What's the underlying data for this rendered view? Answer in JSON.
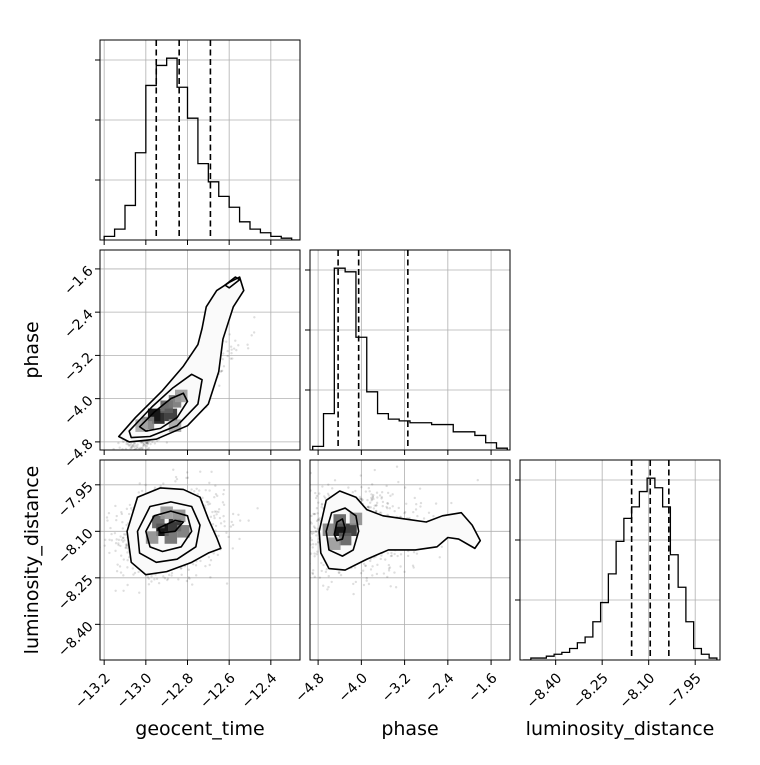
{
  "chart_data": {
    "type": "corner",
    "parameters": [
      "geocent_time",
      "phase",
      "luminosity_distance"
    ],
    "axis_labels": {
      "geocent_time": "geocent_time",
      "phase": "phase",
      "luminosity_distance": "luminosity_distance"
    },
    "ranges": {
      "geocent_time": [
        -13.22,
        -12.26
      ],
      "phase": [
        -4.95,
        -1.25
      ],
      "luminosity_distance": [
        -8.515,
        -7.87
      ]
    },
    "ticks": {
      "geocent_time": {
        "values": [
          -13.2,
          -13.0,
          -12.8,
          -12.6,
          -12.4
        ],
        "labels": [
          "−13.2",
          "−13.0",
          "−12.8",
          "−12.6",
          "−12.4"
        ]
      },
      "phase": {
        "values": [
          -4.8,
          -4.0,
          -3.2,
          -2.4,
          -1.6
        ],
        "labels": [
          "−4.8",
          "−4.0",
          "−3.2",
          "−2.4",
          "−1.6"
        ]
      },
      "luminosity_distance": {
        "values": [
          -8.4,
          -8.25,
          -8.1,
          -7.95
        ],
        "labels": [
          "−8.40",
          "−8.25",
          "−8.10",
          "−7.95"
        ]
      }
    },
    "quantiles": {
      "geocent_time": [
        -12.95,
        -12.84,
        -12.69
      ],
      "phase": [
        -4.43,
        -4.05,
        -3.14
      ],
      "luminosity_distance": [
        -8.155,
        -8.095,
        -8.035
      ]
    },
    "histograms": {
      "geocent_time": {
        "edges": [
          -13.2,
          -13.15,
          -13.1,
          -13.05,
          -13.0,
          -12.95,
          -12.9,
          -12.85,
          -12.8,
          -12.75,
          -12.7,
          -12.65,
          -12.6,
          -12.55,
          -12.5,
          -12.45,
          -12.4,
          -12.35,
          -12.3,
          -12.25
        ],
        "counts": [
          2,
          6,
          19,
          48,
          85,
          96,
          100,
          84,
          67,
          42,
          32,
          24,
          18,
          10,
          6,
          4,
          2,
          1,
          0
        ]
      },
      "phase": {
        "edges": [
          -4.9,
          -4.7,
          -4.5,
          -4.3,
          -4.1,
          -3.9,
          -3.7,
          -3.5,
          -3.3,
          -3.1,
          -2.9,
          -2.7,
          -2.5,
          -2.3,
          -2.1,
          -1.9,
          -1.7,
          -1.5,
          -1.3
        ],
        "counts": [
          2,
          20,
          100,
          98,
          62,
          32,
          20,
          17,
          16,
          15,
          15,
          14,
          14,
          10,
          10,
          8,
          4,
          1
        ]
      },
      "luminosity_distance": {
        "edges": [
          -8.505,
          -8.48,
          -8.455,
          -8.43,
          -8.405,
          -8.38,
          -8.355,
          -8.33,
          -8.305,
          -8.28,
          -8.255,
          -8.23,
          -8.205,
          -8.18,
          -8.155,
          -8.13,
          -8.105,
          -8.08,
          -8.055,
          -8.03,
          -8.005,
          -7.98,
          -7.955,
          -7.93,
          -7.905,
          -7.88
        ],
        "counts": [
          0,
          1,
          1,
          2,
          3,
          4,
          6,
          9,
          12,
          20,
          30,
          45,
          62,
          74,
          80,
          88,
          95,
          90,
          80,
          55,
          38,
          20,
          6,
          3,
          1
        ]
      }
    },
    "pairs": [
      {
        "x": "geocent_time",
        "y": "phase",
        "samples": {
          "center": [
            -12.9,
            -4.3
          ],
          "sd": [
            0.14,
            0.55
          ],
          "corr": 0.94
        },
        "density_bins": [
          {
            "x": -12.96,
            "y": -4.3,
            "level": 1.0
          },
          {
            "x": -12.94,
            "y": -4.35,
            "level": 0.9
          },
          {
            "x": -12.88,
            "y": -4.3,
            "level": 0.8
          },
          {
            "x": -12.9,
            "y": -4.15,
            "level": 0.6
          },
          {
            "x": -12.86,
            "y": -4.05,
            "level": 0.5
          },
          {
            "x": -12.99,
            "y": -4.45,
            "level": 0.45
          },
          {
            "x": -12.83,
            "y": -3.95,
            "level": 0.35
          },
          {
            "x": -13.02,
            "y": -4.5,
            "level": 0.3
          },
          {
            "x": -12.86,
            "y": -4.5,
            "level": 0.3
          }
        ],
        "contours": [
          [
            [
              -13.03,
              -4.52
            ],
            [
              -12.96,
              -4.25
            ],
            [
              -12.88,
              -4.0
            ],
            [
              -12.82,
              -3.9
            ],
            [
              -12.8,
              -4.05
            ],
            [
              -12.85,
              -4.35
            ],
            [
              -12.93,
              -4.55
            ],
            [
              -13.0,
              -4.6
            ]
          ],
          [
            [
              -13.08,
              -4.6
            ],
            [
              -12.97,
              -4.15
            ],
            [
              -12.87,
              -3.8
            ],
            [
              -12.78,
              -3.55
            ],
            [
              -12.73,
              -3.65
            ],
            [
              -12.75,
              -4.1
            ],
            [
              -12.85,
              -4.5
            ],
            [
              -12.98,
              -4.7
            ],
            [
              -13.07,
              -4.72
            ]
          ],
          [
            [
              -13.13,
              -4.7
            ],
            [
              -13.05,
              -4.35
            ],
            [
              -12.92,
              -3.85
            ],
            [
              -12.82,
              -3.4
            ],
            [
              -12.75,
              -3.0
            ],
            [
              -12.73,
              -2.7
            ],
            [
              -12.71,
              -2.3
            ],
            [
              -12.66,
              -2.0
            ],
            [
              -12.6,
              -1.85
            ],
            [
              -12.55,
              -1.75
            ],
            [
              -12.53,
              -2.0
            ],
            [
              -12.58,
              -2.3
            ],
            [
              -12.63,
              -2.9
            ],
            [
              -12.65,
              -3.5
            ],
            [
              -12.7,
              -4.1
            ],
            [
              -12.8,
              -4.5
            ],
            [
              -12.95,
              -4.75
            ],
            [
              -13.08,
              -4.8
            ]
          ],
          [
            [
              -12.6,
              -1.95
            ],
            [
              -12.55,
              -1.8
            ],
            [
              -12.57,
              -1.75
            ],
            [
              -12.62,
              -1.9
            ]
          ]
        ]
      },
      {
        "x": "geocent_time",
        "y": "luminosity_distance",
        "samples": {
          "center": [
            -12.88,
            -8.1
          ],
          "sd": [
            0.13,
            0.07
          ],
          "corr": 0.2
        },
        "density_bins": [
          {
            "x": -12.92,
            "y": -8.095,
            "level": 1.0
          },
          {
            "x": -12.86,
            "y": -8.08,
            "level": 0.85
          },
          {
            "x": -12.94,
            "y": -8.07,
            "level": 0.6
          },
          {
            "x": -12.88,
            "y": -8.12,
            "level": 0.55
          },
          {
            "x": -12.82,
            "y": -8.1,
            "level": 0.5
          },
          {
            "x": -12.97,
            "y": -8.12,
            "level": 0.4
          },
          {
            "x": -12.84,
            "y": -8.05,
            "level": 0.4
          },
          {
            "x": -12.9,
            "y": -8.04,
            "level": 0.35
          }
        ],
        "contours": [
          [
            [
              -12.94,
              -8.09
            ],
            [
              -12.86,
              -8.065
            ],
            [
              -12.82,
              -8.07
            ],
            [
              -12.86,
              -8.1
            ],
            [
              -12.93,
              -8.105
            ]
          ],
          [
            [
              -13.0,
              -8.1
            ],
            [
              -12.96,
              -8.05
            ],
            [
              -12.88,
              -8.035
            ],
            [
              -12.8,
              -8.05
            ],
            [
              -12.78,
              -8.1
            ],
            [
              -12.83,
              -8.15
            ],
            [
              -12.92,
              -8.165
            ],
            [
              -12.98,
              -8.15
            ]
          ],
          [
            [
              -13.04,
              -8.1
            ],
            [
              -12.98,
              -8.02
            ],
            [
              -12.88,
              -8.005
            ],
            [
              -12.78,
              -8.02
            ],
            [
              -12.74,
              -8.08
            ],
            [
              -12.76,
              -8.15
            ],
            [
              -12.85,
              -8.19
            ],
            [
              -12.95,
              -8.2
            ],
            [
              -13.03,
              -8.17
            ]
          ],
          [
            [
              -13.09,
              -8.1
            ],
            [
              -13.04,
              -7.99
            ],
            [
              -12.93,
              -7.96
            ],
            [
              -12.82,
              -7.965
            ],
            [
              -12.74,
              -7.99
            ],
            [
              -12.7,
              -8.06
            ],
            [
              -12.66,
              -8.12
            ],
            [
              -12.64,
              -8.155
            ],
            [
              -12.7,
              -8.17
            ],
            [
              -12.78,
              -8.2
            ],
            [
              -12.9,
              -8.23
            ],
            [
              -13.0,
              -8.24
            ],
            [
              -13.07,
              -8.2
            ]
          ]
        ]
      },
      {
        "x": "phase",
        "y": "luminosity_distance",
        "samples": {
          "center": [
            -4.2,
            -8.1
          ],
          "sd": [
            0.65,
            0.07
          ],
          "corr": 0.05
        },
        "density_bins": [
          {
            "x": -4.4,
            "y": -8.095,
            "level": 1.0
          },
          {
            "x": -4.2,
            "y": -8.095,
            "level": 0.8
          },
          {
            "x": -4.4,
            "y": -8.065,
            "level": 0.6
          },
          {
            "x": -4.3,
            "y": -8.125,
            "level": 0.6
          },
          {
            "x": -4.6,
            "y": -8.095,
            "level": 0.45
          },
          {
            "x": -4.1,
            "y": -8.06,
            "level": 0.4
          },
          {
            "x": -4.5,
            "y": -8.14,
            "level": 0.35
          }
        ],
        "contours": [
          [
            [
              -4.5,
              -8.11
            ],
            [
              -4.45,
              -8.07
            ],
            [
              -4.35,
              -8.06
            ],
            [
              -4.3,
              -8.09
            ],
            [
              -4.35,
              -8.125
            ],
            [
              -4.45,
              -8.13
            ]
          ],
          [
            [
              -4.65,
              -8.1
            ],
            [
              -4.55,
              -8.04
            ],
            [
              -4.3,
              -8.025
            ],
            [
              -4.1,
              -8.05
            ],
            [
              -4.05,
              -8.1
            ],
            [
              -4.15,
              -8.16
            ],
            [
              -4.35,
              -8.18
            ],
            [
              -4.6,
              -8.16
            ]
          ],
          [
            [
              -4.78,
              -8.1
            ],
            [
              -4.65,
              -8.0
            ],
            [
              -4.4,
              -7.97
            ],
            [
              -4.1,
              -7.99
            ],
            [
              -3.9,
              -8.03
            ],
            [
              -3.6,
              -8.05
            ],
            [
              -3.2,
              -8.06
            ],
            [
              -2.8,
              -8.07
            ],
            [
              -2.5,
              -8.05
            ],
            [
              -2.15,
              -8.04
            ],
            [
              -1.95,
              -8.08
            ],
            [
              -1.8,
              -8.13
            ],
            [
              -1.9,
              -8.155
            ],
            [
              -2.2,
              -8.125
            ],
            [
              -2.4,
              -8.12
            ],
            [
              -2.6,
              -8.15
            ],
            [
              -3.0,
              -8.16
            ],
            [
              -3.5,
              -8.16
            ],
            [
              -3.9,
              -8.19
            ],
            [
              -4.3,
              -8.225
            ],
            [
              -4.6,
              -8.22
            ],
            [
              -4.75,
              -8.17
            ]
          ]
        ]
      }
    ],
    "grid": true
  }
}
